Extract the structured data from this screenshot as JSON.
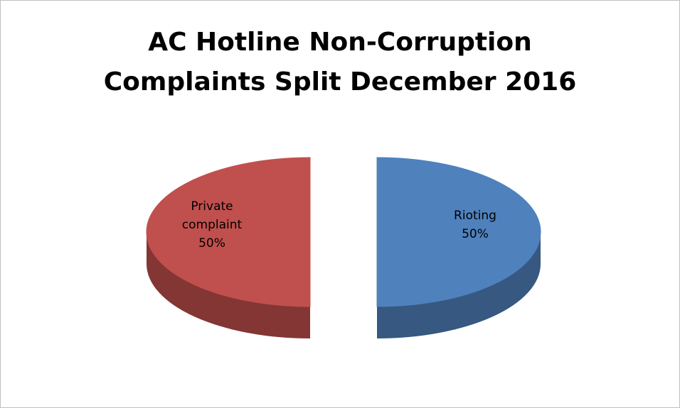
{
  "chart_data": {
    "type": "pie3d",
    "title": "AC Hotline Non-Corruption Complaints Split December 2016",
    "categories": [
      "Rioting",
      "Private complaint"
    ],
    "values": [
      50,
      50
    ],
    "value_labels": [
      "50%",
      "50%"
    ],
    "colors": [
      "#4f81bd",
      "#c0504d"
    ],
    "exploded": true
  }
}
